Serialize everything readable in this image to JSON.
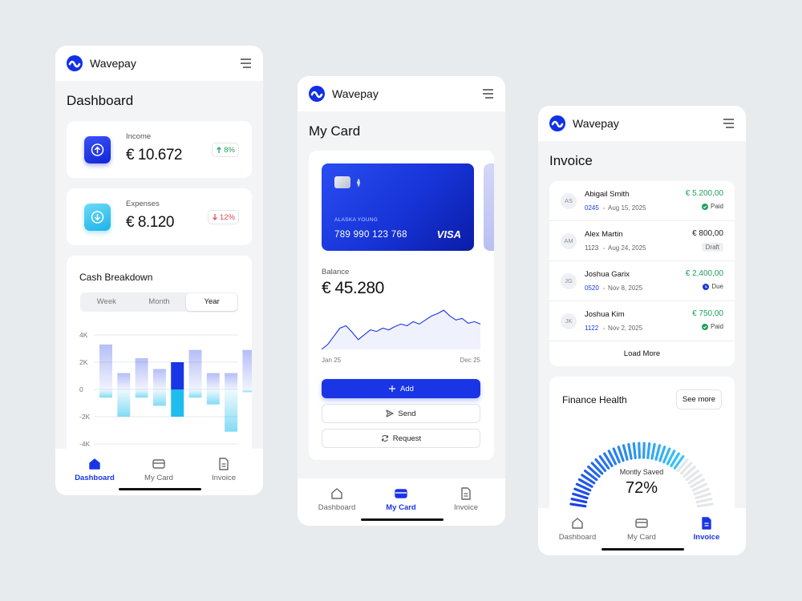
{
  "screens": [
    {
      "brand": "Wavepay",
      "title": "Dashboard",
      "income": {
        "label": "Income",
        "amount": "€ 10.672",
        "change": "8%"
      },
      "expenses": {
        "label": "Expenses",
        "amount": "€ 8.120",
        "change": "12%"
      },
      "cash_breakdown": {
        "title": "Cash Breakdown",
        "tabs": [
          "Week",
          "Month",
          "Year"
        ],
        "active_tab": 2,
        "chart_data": {
          "type": "bar",
          "ylim": [
            -4000,
            4000
          ],
          "yticks": [
            {
              "value": 4000,
              "label": "4K"
            },
            {
              "value": 2000,
              "label": "2K"
            },
            0,
            {
              "value": -2000,
              "label": "-2K"
            },
            {
              "value": -4000,
              "label": "-4K"
            }
          ],
          "grid": true,
          "highlight_index": 4,
          "series": [
            {
              "color": "#1a35e6",
              "values": [
                3300,
                1200,
                2300,
                1500,
                2000,
                2900,
                1200,
                1200,
                2900
              ]
            },
            {
              "color": "#1fbdee",
              "values": [
                -600,
                -2000,
                -600,
                -1200,
                -2000,
                -600,
                -1100,
                -3100,
                -200
              ]
            }
          ]
        }
      },
      "nav": [
        "Dashboard",
        "My Card",
        "Invoice"
      ],
      "active_nav": 0
    },
    {
      "brand": "Wavepay",
      "title": "My Card",
      "card": {
        "holder": "ALASKA YOUNG",
        "number": "789 990 123 768",
        "network": "VISA"
      },
      "balance": {
        "label": "Balance",
        "amount": "€ 45.280",
        "chart_data": {
          "type": "area",
          "color": "#1a35e6",
          "ylim": [
            0,
            55
          ],
          "categories": [
            "Jan 25",
            null,
            null,
            null,
            null,
            null,
            null,
            null,
            null,
            null,
            null,
            null,
            null,
            null,
            null,
            null,
            null,
            null,
            null,
            null,
            null,
            null,
            null,
            null,
            null,
            null,
            "Dec 25"
          ],
          "values": [
            0,
            6,
            16,
            26,
            29,
            21,
            12,
            18,
            24,
            22,
            26,
            24,
            28,
            31,
            29,
            34,
            31,
            36,
            41,
            44,
            48,
            41,
            36,
            38,
            32,
            34,
            31
          ]
        }
      },
      "actions": [
        "Add",
        "Send",
        "Request"
      ],
      "nav": [
        "Dashboard",
        "My Card",
        "Invoice"
      ],
      "active_nav": 1
    },
    {
      "brand": "Wavepay",
      "title": "Invoice",
      "invoices": [
        {
          "initials": "AS",
          "name": "Abigail Smith",
          "amount": "€ 5.200,00",
          "id": "0245",
          "date": "Aug 15, 2025",
          "status": "Paid",
          "amount_color": "#1e9e5a",
          "id_color": "#1a35e6",
          "status_color": "#1e9e5a",
          "status_icon": "check"
        },
        {
          "initials": "AM",
          "name": "Alex Martin",
          "amount": "€ 800,00",
          "id": "1123",
          "date": "Aug 24, 2025",
          "status": "Draft",
          "amount_color": "#222222",
          "id_color": "#555555",
          "status_color": "#666666",
          "status_icon": "badge"
        },
        {
          "initials": "JG",
          "name": "Joshua Garix",
          "amount": "€ 2.400,00",
          "id": "0520",
          "date": "Nov 8, 2025",
          "status": "Due",
          "amount_color": "#1e9e5a",
          "id_color": "#1a35e6",
          "status_color": "#1a35e6",
          "status_icon": "clock"
        },
        {
          "initials": "JK",
          "name": "Joshua Kim",
          "amount": "€ 750,00",
          "id": "1122",
          "date": "Nov 2, 2025",
          "status": "Paid",
          "amount_color": "#1e9e5a",
          "id_color": "#1a35e6",
          "status_color": "#1e9e5a",
          "status_icon": "check"
        }
      ],
      "load_more": "Load More",
      "finance_health": {
        "title": "Finance Health",
        "button": "See more",
        "chart_data": {
          "type": "gauge",
          "label": "Montly Saved",
          "value": 72,
          "value_label": "72%",
          "lim": [
            0,
            100
          ],
          "colors": [
            "#1a35e6",
            "#38caf3"
          ]
        }
      },
      "nav": [
        "Dashboard",
        "My Card",
        "Invoice"
      ],
      "active_nav": 2
    }
  ]
}
